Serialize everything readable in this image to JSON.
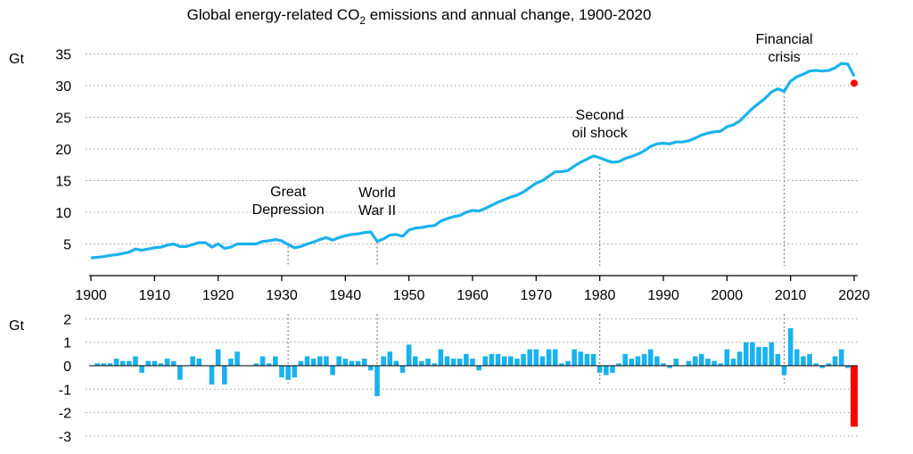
{
  "chart_data": [
    {
      "type": "line",
      "title": "Global energy-related CO",
      "title_sub": "2",
      "title_rest": " emissions and annual change, 1900-2020",
      "ylabel": "Gt",
      "ylim": [
        0,
        37
      ],
      "yticks": [
        5,
        10,
        15,
        20,
        25,
        30,
        35
      ],
      "xlim": [
        1900,
        2020
      ],
      "xticks": [
        1900,
        1910,
        1920,
        1930,
        1940,
        1950,
        1960,
        1970,
        1980,
        1990,
        2000,
        2010,
        2020
      ],
      "grid": true,
      "colors": {
        "series": "#1ab2ee",
        "highlight": "#ff0000"
      },
      "x": [
        1900,
        1901,
        1902,
        1903,
        1904,
        1905,
        1906,
        1907,
        1908,
        1909,
        1910,
        1911,
        1912,
        1913,
        1914,
        1915,
        1916,
        1917,
        1918,
        1919,
        1920,
        1921,
        1922,
        1923,
        1924,
        1925,
        1926,
        1927,
        1928,
        1929,
        1930,
        1931,
        1932,
        1933,
        1934,
        1935,
        1936,
        1937,
        1938,
        1939,
        1940,
        1941,
        1942,
        1943,
        1944,
        1945,
        1946,
        1947,
        1948,
        1949,
        1950,
        1951,
        1952,
        1953,
        1954,
        1955,
        1956,
        1957,
        1958,
        1959,
        1960,
        1961,
        1962,
        1963,
        1964,
        1965,
        1966,
        1967,
        1968,
        1969,
        1970,
        1971,
        1972,
        1973,
        1974,
        1975,
        1976,
        1977,
        1978,
        1979,
        1980,
        1981,
        1982,
        1983,
        1984,
        1985,
        1986,
        1987,
        1988,
        1989,
        1990,
        1991,
        1992,
        1993,
        1994,
        1995,
        1996,
        1997,
        1998,
        1999,
        2000,
        2001,
        2002,
        2003,
        2004,
        2005,
        2006,
        2007,
        2008,
        2009,
        2010,
        2011,
        2012,
        2013,
        2014,
        2015,
        2016,
        2017,
        2018,
        2019,
        2020
      ],
      "values": [
        2.8,
        2.9,
        3.0,
        3.2,
        3.3,
        3.5,
        3.7,
        4.2,
        4.0,
        4.2,
        4.4,
        4.5,
        4.8,
        5.0,
        4.6,
        4.6,
        4.9,
        5.2,
        5.2,
        4.5,
        5.0,
        4.3,
        4.5,
        5.0,
        5.0,
        5.0,
        5.0,
        5.4,
        5.5,
        5.7,
        5.5,
        4.9,
        4.4,
        4.6,
        5.0,
        5.3,
        5.7,
        6.0,
        5.6,
        6.0,
        6.3,
        6.5,
        6.6,
        6.8,
        6.9,
        5.4,
        5.8,
        6.4,
        6.5,
        6.2,
        7.2,
        7.5,
        7.6,
        7.8,
        7.9,
        8.6,
        9.0,
        9.3,
        9.5,
        10.0,
        10.3,
        10.2,
        10.6,
        11.1,
        11.6,
        12.0,
        12.4,
        12.7,
        13.2,
        13.9,
        14.6,
        15.0,
        15.7,
        16.4,
        16.4,
        16.6,
        17.3,
        17.9,
        18.4,
        18.9,
        18.6,
        18.2,
        17.9,
        18.0,
        18.5,
        18.8,
        19.2,
        19.7,
        20.4,
        20.8,
        20.9,
        20.8,
        21.1,
        21.1,
        21.3,
        21.7,
        22.2,
        22.5,
        22.7,
        22.8,
        23.5,
        23.8,
        24.4,
        25.4,
        26.4,
        27.2,
        28.0,
        29.0,
        29.5,
        29.1,
        30.7,
        31.4,
        31.8,
        32.3,
        32.4,
        32.3,
        32.4,
        32.8,
        33.5,
        33.4,
        31.5
      ],
      "highlight_point": {
        "x": 2020,
        "y": 31.5
      },
      "annotations": [
        {
          "lines": [
            "Great",
            "Depression"
          ],
          "x": 1931
        },
        {
          "lines": [
            "World",
            "War II"
          ],
          "x": 1945
        },
        {
          "lines": [
            "Second",
            "oil shock"
          ],
          "x": 1980
        },
        {
          "lines": [
            "Financial",
            "crisis"
          ],
          "x": 2009
        }
      ]
    },
    {
      "type": "bar",
      "ylabel": "Gt",
      "ylim": [
        -3,
        2
      ],
      "yticks": [
        2,
        1,
        0,
        -1,
        -2,
        -3
      ],
      "grid": true,
      "colors": {
        "series": "#1ab2ee",
        "highlight": "#ff0000"
      },
      "x": [
        1901,
        1902,
        1903,
        1904,
        1905,
        1906,
        1907,
        1908,
        1909,
        1910,
        1911,
        1912,
        1913,
        1914,
        1915,
        1916,
        1917,
        1918,
        1919,
        1920,
        1921,
        1922,
        1923,
        1924,
        1925,
        1926,
        1927,
        1928,
        1929,
        1930,
        1931,
        1932,
        1933,
        1934,
        1935,
        1936,
        1937,
        1938,
        1939,
        1940,
        1941,
        1942,
        1943,
        1944,
        1945,
        1946,
        1947,
        1948,
        1949,
        1950,
        1951,
        1952,
        1953,
        1954,
        1955,
        1956,
        1957,
        1958,
        1959,
        1960,
        1961,
        1962,
        1963,
        1964,
        1965,
        1966,
        1967,
        1968,
        1969,
        1970,
        1971,
        1972,
        1973,
        1974,
        1975,
        1976,
        1977,
        1978,
        1979,
        1980,
        1981,
        1982,
        1983,
        1984,
        1985,
        1986,
        1987,
        1988,
        1989,
        1990,
        1991,
        1992,
        1993,
        1994,
        1995,
        1996,
        1997,
        1998,
        1999,
        2000,
        2001,
        2002,
        2003,
        2004,
        2005,
        2006,
        2007,
        2008,
        2009,
        2010,
        2011,
        2012,
        2013,
        2014,
        2015,
        2016,
        2017,
        2018,
        2019,
        2020
      ],
      "values": [
        0.1,
        0.1,
        0.1,
        0.3,
        0.2,
        0.2,
        0.4,
        -0.3,
        0.2,
        0.2,
        0.1,
        0.3,
        0.2,
        -0.6,
        0.0,
        0.4,
        0.3,
        0.0,
        -0.8,
        0.7,
        -0.8,
        0.3,
        0.6,
        0.0,
        0.0,
        0.1,
        0.4,
        0.1,
        0.4,
        -0.5,
        -0.6,
        -0.5,
        0.2,
        0.4,
        0.3,
        0.4,
        0.4,
        -0.4,
        0.4,
        0.3,
        0.2,
        0.2,
        0.3,
        -0.2,
        -1.3,
        0.4,
        0.6,
        0.2,
        -0.3,
        0.9,
        0.4,
        0.2,
        0.3,
        0.1,
        0.7,
        0.4,
        0.3,
        0.3,
        0.5,
        0.3,
        -0.2,
        0.4,
        0.5,
        0.5,
        0.4,
        0.4,
        0.3,
        0.5,
        0.7,
        0.7,
        0.4,
        0.7,
        0.7,
        0.1,
        0.2,
        0.7,
        0.6,
        0.5,
        0.5,
        -0.3,
        -0.4,
        -0.3,
        0.1,
        0.5,
        0.3,
        0.4,
        0.5,
        0.7,
        0.4,
        0.1,
        -0.1,
        0.3,
        0.0,
        0.2,
        0.4,
        0.5,
        0.3,
        0.2,
        0.1,
        0.7,
        0.3,
        0.6,
        1.0,
        1.0,
        0.8,
        0.8,
        1.0,
        0.5,
        -0.4,
        1.6,
        0.7,
        0.4,
        0.5,
        0.1,
        -0.1,
        0.1,
        0.4,
        0.7,
        -0.1,
        -2.6
      ],
      "highlight_index": 119
    }
  ]
}
